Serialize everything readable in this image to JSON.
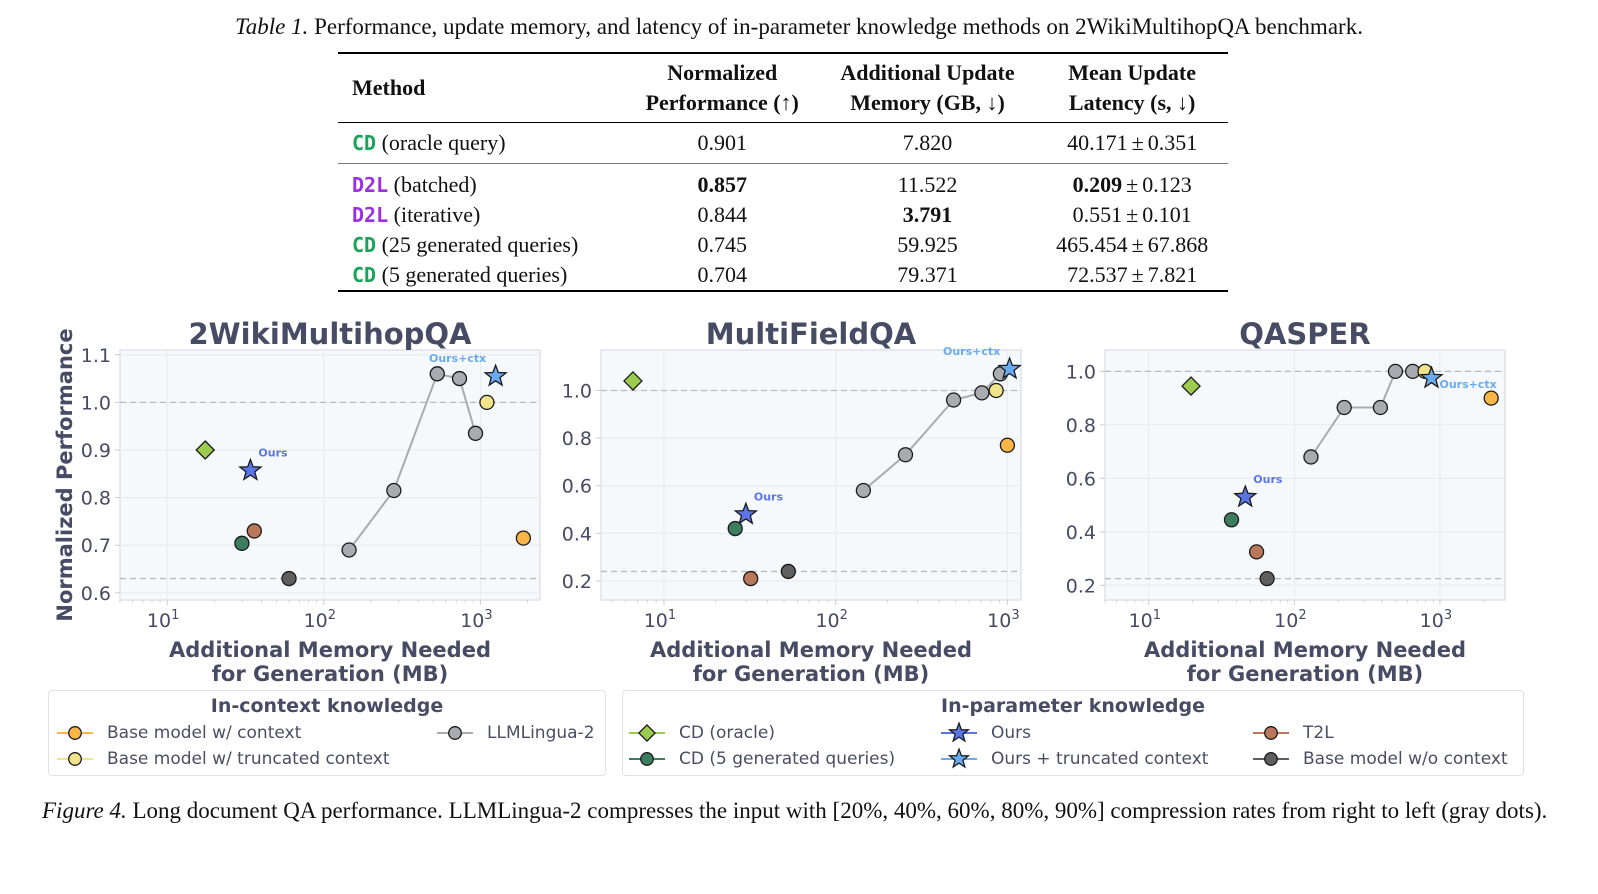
{
  "table_caption": {
    "label": "Table 1.",
    "text": "Performance, update memory, and latency of in-parameter knowledge methods on 2WikiMultihopQA benchmark."
  },
  "table": {
    "headers": {
      "method": "Method",
      "perf_l1": "Normalized",
      "perf_l2": "Performance (↑)",
      "mem_l1": "Additional Update",
      "mem_l2": "Memory (GB, ↓)",
      "lat_l1": "Mean Update",
      "lat_l2": "Latency (s, ↓)"
    },
    "rows": [
      {
        "tag": "CD",
        "tag_color": "cd",
        "desc": "(oracle query)",
        "perf": "0.901",
        "mem": "7.820",
        "lat": "40.171",
        "lat_std": "0.351"
      },
      {
        "tag": "D2L",
        "tag_color": "d2l",
        "desc": "(batched)",
        "perf": "0.857",
        "mem": "11.522",
        "lat": "0.209",
        "lat_std": "0.123"
      },
      {
        "tag": "D2L",
        "tag_color": "d2l",
        "desc": "(iterative)",
        "perf": "0.844",
        "mem": "3.791",
        "lat": "0.551",
        "lat_std": "0.101"
      },
      {
        "tag": "CD",
        "tag_color": "cd",
        "desc": "(25 generated queries)",
        "perf": "0.745",
        "mem": "59.925",
        "lat": "465.454",
        "lat_std": "67.868"
      },
      {
        "tag": "CD",
        "tag_color": "cd",
        "desc": "(5 generated queries)",
        "perf": "0.704",
        "mem": "79.371",
        "lat": "72.537",
        "lat_std": "7.821"
      }
    ],
    "pm_symbol": "±",
    "bold_cells": [
      "rows.1.perf",
      "rows.2.mem",
      "rows.1.lat"
    ]
  },
  "chart_data": [
    {
      "type": "scatter",
      "title": "2WikiMultihopQA",
      "xlabel": "Additional Memory Needed\nfor Generation (MB)",
      "ylabel": "Normalized Performance",
      "xscale": "log",
      "xlim": [
        5,
        2400
      ],
      "ylim": [
        0.585,
        1.11
      ],
      "xticks": [
        {
          "v": 10,
          "label": "10",
          "exp": "1"
        },
        {
          "v": 100,
          "label": "10",
          "exp": "2"
        },
        {
          "v": 1000,
          "label": "10",
          "exp": "3"
        }
      ],
      "yticks": [
        0.6,
        0.7,
        0.8,
        0.9,
        1.0,
        1.1
      ],
      "ytick_labels": [
        "0.6",
        "0.7",
        "0.8",
        "0.9",
        "1.0",
        "1.1"
      ],
      "ref_lines": [
        1.0,
        0.63
      ],
      "grid": true,
      "series": [
        {
          "name": "CD (oracle)",
          "marker": "diamond",
          "points": [
            [
              17.5,
              0.9
            ]
          ]
        },
        {
          "name": "Ours",
          "marker": "star",
          "points": [
            [
              34,
              0.857
            ]
          ],
          "annotation": "Ours"
        },
        {
          "name": "T2L",
          "marker": "circle",
          "points": [
            [
              36,
              0.73
            ]
          ]
        },
        {
          "name": "CD (5 generated queries)",
          "marker": "circle",
          "points": [
            [
              30,
              0.704
            ]
          ]
        },
        {
          "name": "Base model w/o context",
          "marker": "circle",
          "points": [
            [
              60,
              0.63
            ]
          ]
        },
        {
          "name": "LLMLingua-2",
          "marker": "circle",
          "line": true,
          "points": [
            [
              145,
              0.69
            ],
            [
              280,
              0.815
            ],
            [
              530,
              1.06
            ],
            [
              735,
              1.05
            ],
            [
              930,
              0.935
            ]
          ]
        },
        {
          "name": "Ours + truncated context",
          "marker": "star",
          "points": [
            [
              1250,
              1.055
            ]
          ],
          "annotation": "Ours+ctx"
        },
        {
          "name": "Base model w/ truncated context",
          "marker": "circle",
          "points": [
            [
              1100,
              1.0
            ]
          ]
        },
        {
          "name": "Base model w/ context",
          "marker": "circle",
          "points": [
            [
              1880,
              0.715
            ]
          ]
        }
      ]
    },
    {
      "type": "scatter",
      "title": "MultiFieldQA",
      "xlabel": "Additional Memory Needed\nfor Generation (MB)",
      "ylabel": "",
      "xscale": "log",
      "xlim": [
        4.3,
        1200
      ],
      "ylim": [
        0.12,
        1.17
      ],
      "xticks": [
        {
          "v": 10,
          "label": "10",
          "exp": "1"
        },
        {
          "v": 100,
          "label": "10",
          "exp": "2"
        },
        {
          "v": 1000,
          "label": "10",
          "exp": "3"
        }
      ],
      "yticks": [
        0.2,
        0.4,
        0.6,
        0.8,
        1.0
      ],
      "ytick_labels": [
        "0.2",
        "0.4",
        "0.6",
        "0.8",
        "1.0"
      ],
      "ref_lines": [
        1.0,
        0.24
      ],
      "grid": true,
      "series": [
        {
          "name": "CD (oracle)",
          "marker": "diamond",
          "points": [
            [
              6.6,
              1.04
            ]
          ]
        },
        {
          "name": "Ours",
          "marker": "star",
          "points": [
            [
              30,
              0.48
            ]
          ],
          "annotation": "Ours"
        },
        {
          "name": "CD (5 generated queries)",
          "marker": "circle",
          "points": [
            [
              26,
              0.42
            ]
          ]
        },
        {
          "name": "T2L",
          "marker": "circle",
          "points": [
            [
              32,
              0.21
            ]
          ]
        },
        {
          "name": "Base model w/o context",
          "marker": "circle",
          "points": [
            [
              53,
              0.24
            ]
          ]
        },
        {
          "name": "LLMLingua-2",
          "marker": "circle",
          "line": true,
          "points": [
            [
              145,
              0.58
            ],
            [
              255,
              0.73
            ],
            [
              486,
              0.96
            ],
            [
              710,
              0.99
            ],
            [
              910,
              1.07
            ]
          ]
        },
        {
          "name": "Ours + truncated context",
          "marker": "star",
          "points": [
            [
              1030,
              1.09
            ]
          ],
          "annotation": "Ours+ctx"
        },
        {
          "name": "Base model w/ truncated context",
          "marker": "circle",
          "points": [
            [
              860,
              1.0
            ]
          ]
        },
        {
          "name": "Base model w/ context",
          "marker": "circle",
          "points": [
            [
              1000,
              0.77
            ]
          ]
        }
      ]
    },
    {
      "type": "scatter",
      "title": "QASPER",
      "xlabel": "Additional Memory Needed\nfor Generation (MB)",
      "ylabel": "",
      "xscale": "log",
      "xlim": [
        5,
        2800
      ],
      "ylim": [
        0.145,
        1.08
      ],
      "xticks": [
        {
          "v": 10,
          "label": "10",
          "exp": "1"
        },
        {
          "v": 100,
          "label": "10",
          "exp": "2"
        },
        {
          "v": 1000,
          "label": "10",
          "exp": "3"
        }
      ],
      "yticks": [
        0.2,
        0.4,
        0.6,
        0.8,
        1.0
      ],
      "ytick_labels": [
        "0.2",
        "0.4",
        "0.6",
        "0.8",
        "1.0"
      ],
      "ref_lines": [
        1.0,
        0.225
      ],
      "grid": true,
      "series": [
        {
          "name": "CD (oracle)",
          "marker": "diamond",
          "points": [
            [
              19.5,
              0.945
            ]
          ]
        },
        {
          "name": "Ours",
          "marker": "star",
          "points": [
            [
              46,
              0.53
            ]
          ],
          "annotation": "Ours"
        },
        {
          "name": "CD (5 generated queries)",
          "marker": "circle",
          "points": [
            [
              37,
              0.445
            ]
          ]
        },
        {
          "name": "T2L",
          "marker": "circle",
          "points": [
            [
              55,
              0.325
            ]
          ]
        },
        {
          "name": "Base model w/o context",
          "marker": "circle",
          "points": [
            [
              65,
              0.225
            ]
          ]
        },
        {
          "name": "LLMLingua-2",
          "marker": "circle",
          "line": true,
          "points": [
            [
              130,
              0.68
            ],
            [
              220,
              0.865
            ],
            [
              390,
              0.865
            ],
            [
              495,
              1.0
            ],
            [
              650,
              1.0
            ]
          ]
        },
        {
          "name": "Base model w/ truncated context",
          "marker": "circle",
          "points": [
            [
              790,
              1.0
            ]
          ]
        },
        {
          "name": "Ours + truncated context",
          "marker": "star",
          "points": [
            [
              875,
              0.975
            ]
          ],
          "annotation": "Ours+ctx",
          "annotation_side": "right"
        },
        {
          "name": "Base model w/ context",
          "marker": "circle",
          "points": [
            [
              2250,
              0.9
            ]
          ]
        }
      ]
    }
  ],
  "series_colors": {
    "CD (oracle)": "#9ccc4f",
    "Ours": "#5b75e6",
    "T2L": "#b9785a",
    "CD (5 generated queries)": "#3b7d5e",
    "Base model w/o context": "#5f5f5f",
    "LLMLingua-2": "#a8acb0",
    "Ours + truncated context": "#6aaaf0",
    "Base model w/ truncated context": "#f0e38a",
    "Base model w/ context": "#f9b545"
  },
  "legend": {
    "in_context": {
      "title": "In-context knowledge",
      "items": [
        {
          "label": "Base model w/ context",
          "series": "Base model w/ context",
          "marker": "circle"
        },
        {
          "label": "Base model w/ truncated context",
          "series": "Base model w/ truncated context",
          "marker": "circle"
        },
        {
          "label": "LLMLingua-2",
          "series": "LLMLingua-2",
          "marker": "circle"
        }
      ]
    },
    "in_parameter": {
      "title": "In-parameter knowledge",
      "items": [
        {
          "label": "CD (oracle)",
          "series": "CD (oracle)",
          "marker": "diamond"
        },
        {
          "label": "CD (5 generated queries)",
          "series": "CD (5 generated queries)",
          "marker": "circle"
        },
        {
          "label": "Ours",
          "series": "Ours",
          "marker": "star"
        },
        {
          "label": "Ours + truncated context",
          "series": "Ours + truncated context",
          "marker": "star"
        },
        {
          "label": "T2L",
          "series": "T2L",
          "marker": "circle"
        },
        {
          "label": "Base model w/o context",
          "series": "Base model w/o context",
          "marker": "circle"
        }
      ]
    }
  },
  "figure_caption": {
    "label": "Figure 4.",
    "text": "Long document QA performance. LLMLingua-2 compresses the input with [20%, 40%, 60%, 80%, 90%] compression rates from right to left (gray dots)."
  }
}
